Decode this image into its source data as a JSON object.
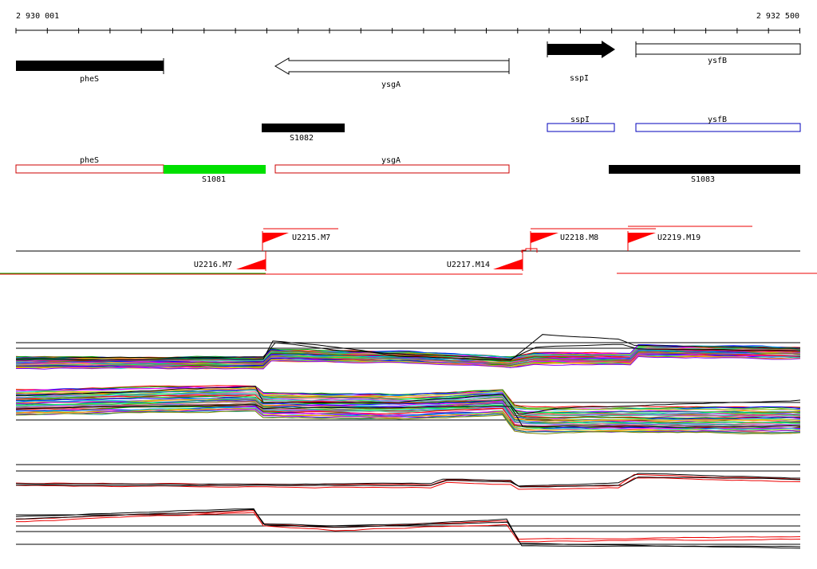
{
  "coordinates": {
    "start_label": "2 930 001",
    "end_label": "2 932 500"
  },
  "colors": {
    "gene_fill": "#000000",
    "operon_outline": "#cc0000",
    "hit_fill": "#00e000",
    "blue_outline": "#0000bb",
    "tss_flag": "#ff0000",
    "trace_black": "#000000",
    "trace_red": "#ee0000"
  },
  "genes": [
    {
      "id": "pheS",
      "label": "pheS",
      "style": "filled"
    },
    {
      "id": "ysgA",
      "label": "ysgA",
      "style": "arrow-open-left"
    },
    {
      "id": "sspI",
      "label": "sspI",
      "style": "arrow-filled-right"
    },
    {
      "id": "ysfB",
      "label": "ysfB",
      "style": "open"
    }
  ],
  "segments_row1": [
    {
      "id": "S1082",
      "label": "S1082"
    },
    {
      "id": "sspI_blue",
      "label": "sspI"
    },
    {
      "id": "ysfB_blue",
      "label": "ysfB"
    }
  ],
  "segments_row2": [
    {
      "id": "pheS_red",
      "label": "pheS"
    },
    {
      "id": "S1081",
      "label": "S1081"
    },
    {
      "id": "ysgA_red",
      "label": "ysgA"
    },
    {
      "id": "S1083",
      "label": "S1083"
    }
  ],
  "upshifts": [
    {
      "id": "U2215",
      "label": "U2215.M7",
      "strand": "+"
    },
    {
      "id": "U2216",
      "label": "U2216.M7",
      "strand": "-"
    },
    {
      "id": "U2217",
      "label": "U2217.M14",
      "strand": "-"
    },
    {
      "id": "U2218",
      "label": "U2218.M8",
      "strand": "+"
    },
    {
      "id": "U2219",
      "label": "U2219.M19",
      "strand": "+"
    }
  ],
  "trace_palette": [
    "#ff0000",
    "#00aa00",
    "#0000ff",
    "#ff00ff",
    "#00cccc",
    "#cccc00",
    "#ff8800",
    "#8800ff",
    "#008888",
    "#888800",
    "#00ff66",
    "#ff6699",
    "#6666ff",
    "#996633",
    "#33cc99",
    "#cc3399"
  ]
}
